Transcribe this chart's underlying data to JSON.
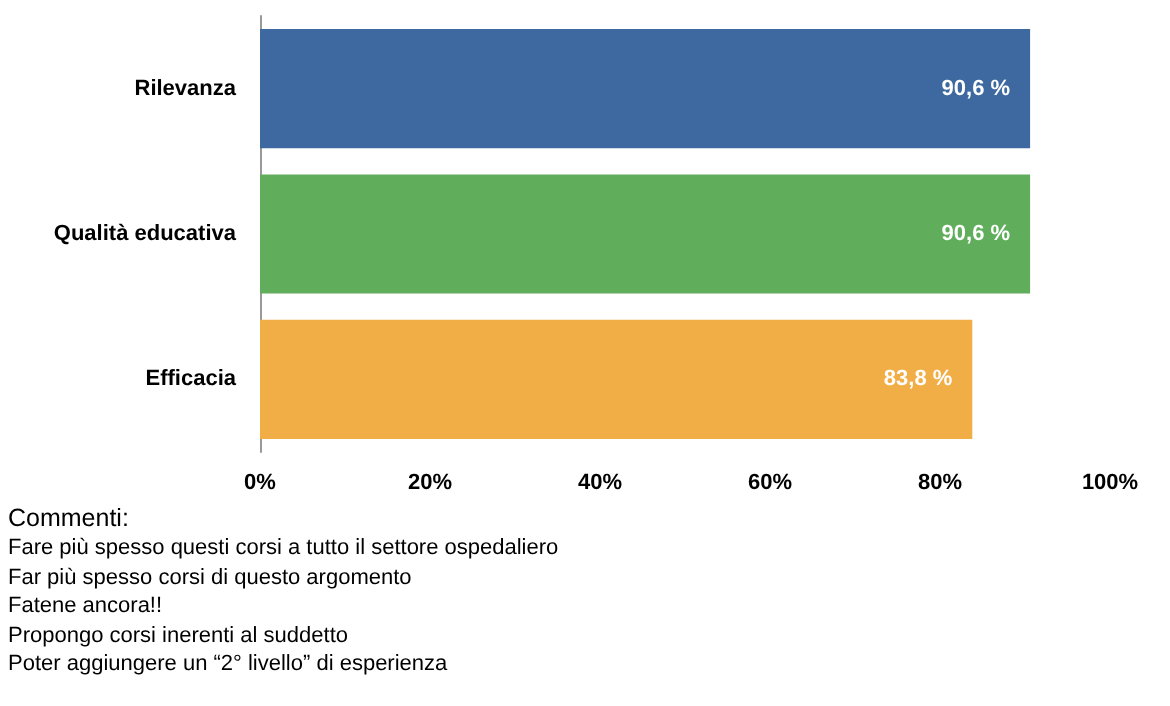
{
  "chart_data": {
    "type": "bar",
    "orientation": "horizontal",
    "categories": [
      "Rilevanza",
      "Qualità educativa",
      "Efficacia"
    ],
    "values": [
      90.6,
      90.6,
      83.8
    ],
    "colors": [
      "#3d69a0",
      "#60ad5b",
      "#f1ae46"
    ],
    "value_labels": [
      "90,6 %",
      "90,6 %",
      "83,8 %"
    ],
    "xlim": [
      0,
      100
    ],
    "xticks": [
      {
        "value": 0,
        "label": "0%"
      },
      {
        "value": 20,
        "label": "20%"
      },
      {
        "value": 40,
        "label": "40%"
      },
      {
        "value": 60,
        "label": "60%"
      },
      {
        "value": 80,
        "label": "80%"
      },
      {
        "value": 100,
        "label": "100%"
      }
    ],
    "grid": false,
    "annotations": [
      "Commenti:",
      "Fare più spesso questi corsi a tutto il settore ospedaliero",
      "Far più spesso corsi di questo argomento",
      "Fatene ancora!!",
      "Propongo corsi inerenti al suddetto",
      "Poter aggiungere un “2° livello” di esperienza"
    ]
  }
}
